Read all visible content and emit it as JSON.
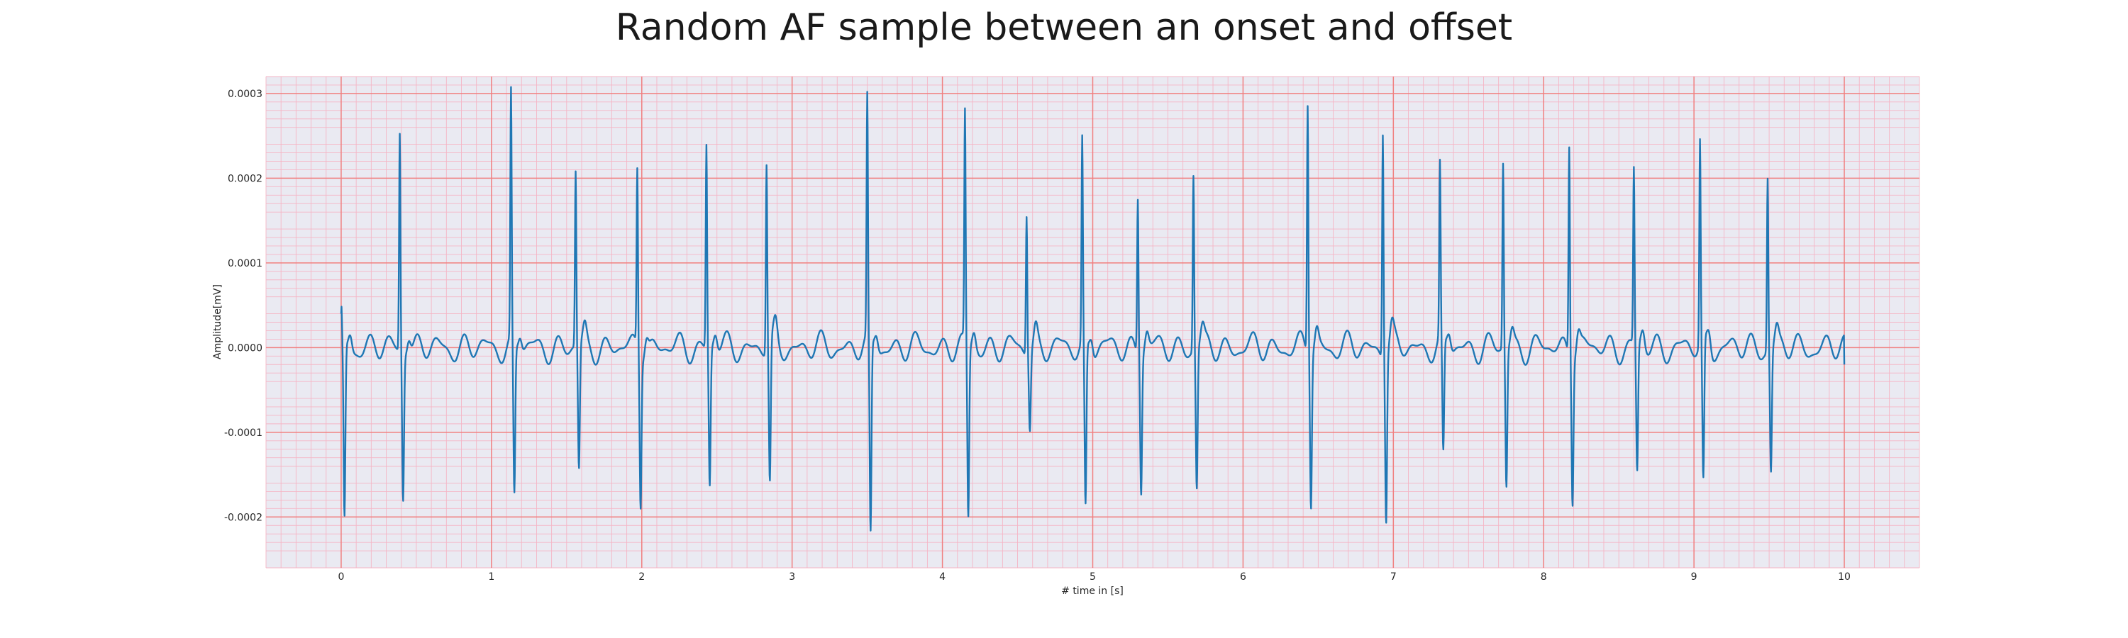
{
  "chart_data": {
    "type": "line",
    "title": "Random AF sample between an onset and offset",
    "xlabel": "# time in [s]",
    "ylabel": "Amplitude[mV]",
    "xlim": [
      -0.5,
      10.5
    ],
    "ylim": [
      -0.00026,
      0.00032
    ],
    "x_ticks": [
      0,
      1,
      2,
      3,
      4,
      5,
      6,
      7,
      8,
      9,
      10
    ],
    "x_tick_labels": [
      "0",
      "1",
      "2",
      "3",
      "4",
      "5",
      "6",
      "7",
      "8",
      "9",
      "10"
    ],
    "y_ticks": [
      -0.0002,
      -0.0001,
      0.0,
      0.0001,
      0.0002,
      0.0003
    ],
    "y_tick_labels": [
      "-0.0002",
      "-0.0001",
      "0.0000",
      "0.0001",
      "0.0002",
      "0.0003"
    ],
    "grid": "major and minor",
    "background": "#eaeaf2",
    "colors": {
      "line": "#1f77b4",
      "major_grid": "#f08080",
      "minor_grid": "#f5b5c5"
    },
    "baseline": 0.0,
    "start_value": 4e-05,
    "end_value": -2e-05,
    "wave_amplitude": 2e-05,
    "beats": [
      {
        "t": 0.0,
        "peak": 4e-05,
        "trough": -0.00021
      },
      {
        "t": 0.39,
        "peak": 0.000257,
        "trough": -0.000173
      },
      {
        "t": 1.13,
        "peak": 0.000293,
        "trough": -0.00018
      },
      {
        "t": 1.56,
        "peak": 0.000206,
        "trough": -0.000147
      },
      {
        "t": 1.97,
        "peak": 0.000211,
        "trough": -0.000175
      },
      {
        "t": 2.43,
        "peak": 0.00024,
        "trough": -0.000163
      },
      {
        "t": 2.83,
        "peak": 0.000222,
        "trough": -0.000166
      },
      {
        "t": 3.5,
        "peak": 0.000283,
        "trough": -0.000232
      },
      {
        "t": 4.15,
        "peak": 0.00027,
        "trough": -0.000204
      },
      {
        "t": 4.56,
        "peak": 0.000166,
        "trough": -8.9e-05
      },
      {
        "t": 4.93,
        "peak": 0.000241,
        "trough": -0.000196
      },
      {
        "t": 5.3,
        "peak": 0.000184,
        "trough": -0.000161
      },
      {
        "t": 5.67,
        "peak": 0.000207,
        "trough": -0.000166
      },
      {
        "t": 6.43,
        "peak": 0.000295,
        "trough": -0.000178
      },
      {
        "t": 6.93,
        "peak": 0.000265,
        "trough": -0.000195
      },
      {
        "t": 7.31,
        "peak": 0.000205,
        "trough": -0.000137
      },
      {
        "t": 7.73,
        "peak": 0.000219,
        "trough": -0.000163
      },
      {
        "t": 8.17,
        "peak": 0.000248,
        "trough": -0.000167
      },
      {
        "t": 8.6,
        "peak": 0.000207,
        "trough": -0.000151
      },
      {
        "t": 9.04,
        "peak": 0.000241,
        "trough": -0.00017
      },
      {
        "t": 9.49,
        "peak": 0.000205,
        "trough": -0.000145
      }
    ]
  }
}
